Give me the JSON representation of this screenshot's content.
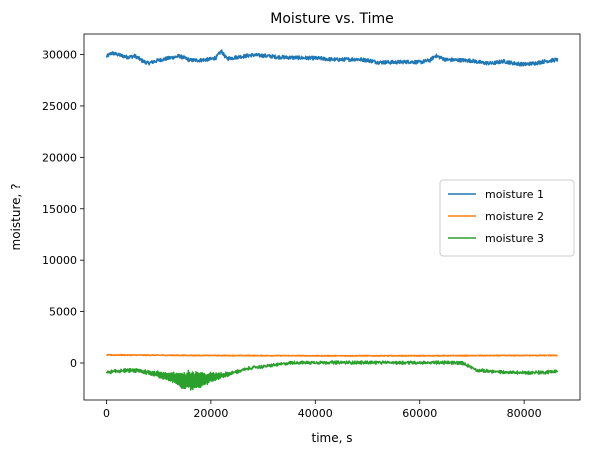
{
  "chart_data": {
    "type": "line",
    "title": "Moisture vs. Time",
    "xlabel": "time, s",
    "ylabel": "moisture, ?",
    "xlim": [
      -4300,
      90700
    ],
    "ylim": [
      -3600,
      32000
    ],
    "xticks": [
      0,
      20000,
      40000,
      60000,
      80000
    ],
    "yticks": [
      0,
      5000,
      10000,
      15000,
      20000,
      25000,
      30000
    ],
    "grid": false,
    "legend_position": "center-right",
    "series": [
      {
        "name": "moisture 1",
        "color": "#1f77b4",
        "noise": 180,
        "x": [
          0,
          1000,
          2500,
          4000,
          5500,
          7000,
          8000,
          10000,
          12000,
          14000,
          16000,
          18000,
          20000,
          21000,
          22000,
          23000,
          25000,
          28000,
          30000,
          33000,
          36000,
          40000,
          44000,
          48000,
          50000,
          52000,
          55000,
          58000,
          60000,
          62000,
          63000,
          65000,
          68000,
          70000,
          72000,
          74000,
          76000,
          78000,
          80000,
          82000,
          84000,
          86400
        ],
        "y": [
          29800,
          30150,
          29950,
          29750,
          29850,
          29350,
          29150,
          29450,
          29650,
          29850,
          29450,
          29450,
          29550,
          29700,
          30350,
          29600,
          29750,
          29950,
          29900,
          29750,
          29700,
          29650,
          29500,
          29550,
          29450,
          29250,
          29250,
          29300,
          29250,
          29450,
          29900,
          29500,
          29450,
          29400,
          29200,
          29150,
          29350,
          29150,
          29050,
          29150,
          29350,
          29500
        ]
      },
      {
        "name": "moisture 2",
        "color": "#ff7f0e",
        "noise": 40,
        "x": [
          0,
          20000,
          40000,
          60000,
          86400
        ],
        "y": [
          780,
          730,
          700,
          700,
          740
        ]
      },
      {
        "name": "moisture 3",
        "color": "#2ca02c",
        "noise": 120,
        "amp_x": [
          0,
          8000,
          12000,
          14000,
          16000,
          18000,
          20000,
          22000,
          24000,
          26000,
          30000,
          86400
        ],
        "amp": [
          60,
          120,
          350,
          700,
          900,
          700,
          450,
          180,
          80,
          50,
          40,
          60
        ],
        "x": [
          0,
          2000,
          5000,
          8000,
          10000,
          12000,
          14000,
          16000,
          18000,
          20000,
          22000,
          24000,
          26000,
          28000,
          30000,
          32000,
          34000,
          35000,
          36000,
          40000,
          50000,
          60000,
          66000,
          68000,
          69500,
          71000,
          73000,
          76000,
          80000,
          84000,
          86400
        ],
        "y": [
          -900,
          -800,
          -700,
          -900,
          -1100,
          -1350,
          -1600,
          -1700,
          -1600,
          -1400,
          -1200,
          -1000,
          -700,
          -450,
          -350,
          -200,
          -80,
          0,
          30,
          40,
          40,
          40,
          30,
          0,
          -300,
          -700,
          -800,
          -900,
          -950,
          -900,
          -800
        ]
      }
    ]
  }
}
